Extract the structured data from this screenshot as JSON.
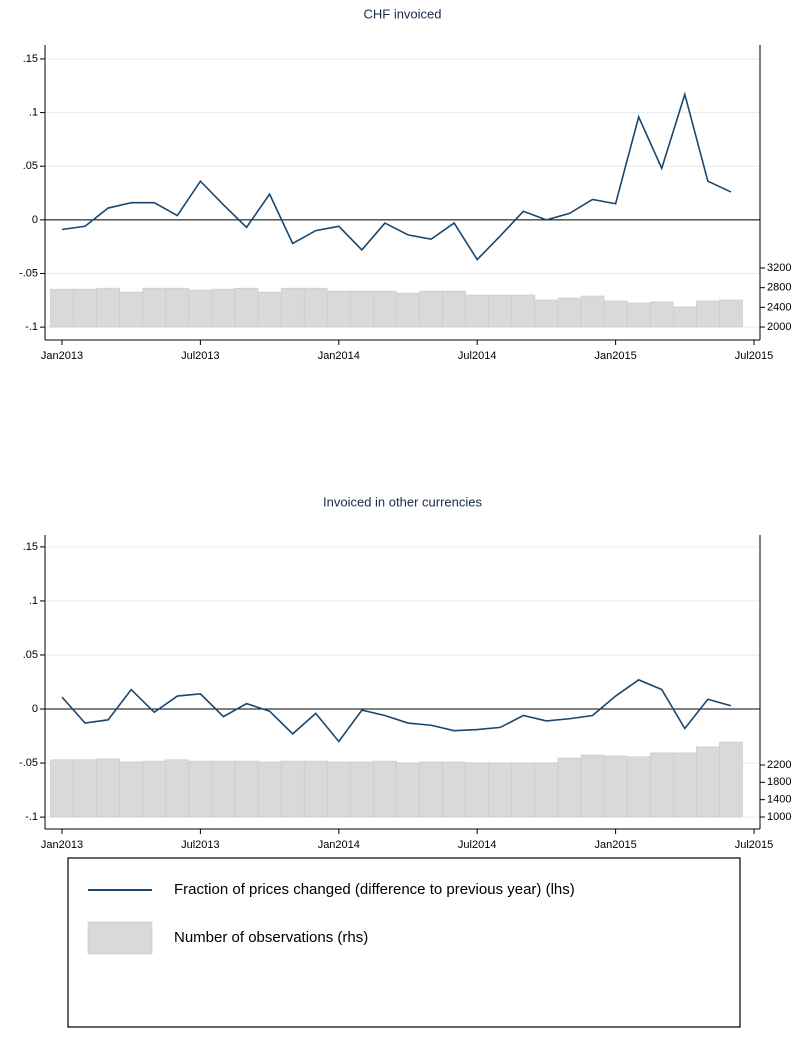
{
  "chart_data": [
    {
      "type": "line",
      "title": "CHF invoiced",
      "x": [
        "2013-01",
        "2013-02",
        "2013-03",
        "2013-04",
        "2013-05",
        "2013-06",
        "2013-07",
        "2013-08",
        "2013-09",
        "2013-10",
        "2013-11",
        "2013-12",
        "2014-01",
        "2014-02",
        "2014-03",
        "2014-04",
        "2014-05",
        "2014-06",
        "2014-07",
        "2014-08",
        "2014-09",
        "2014-10",
        "2014-11",
        "2014-12",
        "2015-01",
        "2015-02",
        "2015-03",
        "2015-04",
        "2015-05",
        "2015-06"
      ],
      "series": [
        {
          "name": "Fraction of prices changed (difference to previous year) (lhs)",
          "type": "line",
          "color": "#1a476f",
          "values": [
            -0.009,
            -0.006,
            0.011,
            0.016,
            0.016,
            0.004,
            0.036,
            0.014,
            -0.007,
            0.024,
            -0.022,
            -0.01,
            -0.006,
            -0.028,
            -0.003,
            -0.014,
            -0.018,
            -0.003,
            -0.037,
            -0.015,
            0.008,
            0.0,
            0.006,
            0.019,
            0.015,
            0.096,
            0.048,
            0.117,
            0.036,
            0.026
          ]
        },
        {
          "name": "Number of observations (rhs)",
          "type": "bar",
          "axis": "y2",
          "color": "#d9d9d9",
          "values": [
            2770,
            2770,
            2790,
            2710,
            2790,
            2790,
            2750,
            2770,
            2790,
            2710,
            2790,
            2790,
            2730,
            2730,
            2730,
            2690,
            2730,
            2730,
            2650,
            2650,
            2650,
            2550,
            2590,
            2630,
            2530,
            2490,
            2510,
            2410,
            2530,
            2550
          ]
        }
      ],
      "xlim": [
        "2013-01",
        "2015-07"
      ],
      "xticks": [
        {
          "value": "2013-01",
          "label": "Jan2013"
        },
        {
          "value": "2013-07",
          "label": "Jul2013"
        },
        {
          "value": "2014-01",
          "label": "Jan2014"
        },
        {
          "value": "2014-07",
          "label": "Jul2014"
        },
        {
          "value": "2015-01",
          "label": "Jan2015"
        },
        {
          "value": "2015-07",
          "label": "Jul2015"
        }
      ],
      "ylim": [
        -0.112,
        0.163
      ],
      "yticks": [
        {
          "value": -0.1,
          "label": "-.1"
        },
        {
          "value": -0.05,
          "label": "-.05"
        },
        0,
        {
          "value": 0.05,
          "label": ".05"
        },
        {
          "value": 0.1,
          "label": ".1"
        },
        {
          "value": 0.15,
          "label": ".15"
        }
      ],
      "y2lim": [
        1736,
        7735
      ],
      "y2ticks": [
        2000,
        2400,
        2800,
        3200
      ],
      "refline": 0,
      "grid": true
    },
    {
      "type": "line",
      "title": "Invoiced in other currencies",
      "x": [
        "2013-01",
        "2013-02",
        "2013-03",
        "2013-04",
        "2013-05",
        "2013-06",
        "2013-07",
        "2013-08",
        "2013-09",
        "2013-10",
        "2013-11",
        "2013-12",
        "2014-01",
        "2014-02",
        "2014-03",
        "2014-04",
        "2014-05",
        "2014-06",
        "2014-07",
        "2014-08",
        "2014-09",
        "2014-10",
        "2014-11",
        "2014-12",
        "2015-01",
        "2015-02",
        "2015-03",
        "2015-04",
        "2015-05",
        "2015-06"
      ],
      "series": [
        {
          "type": "line",
          "color": "#1a476f",
          "values": [
            0.011,
            -0.013,
            -0.01,
            0.018,
            -0.003,
            0.012,
            0.014,
            -0.007,
            0.005,
            -0.002,
            -0.023,
            -0.004,
            -0.03,
            -0.001,
            -0.006,
            -0.013,
            -0.015,
            -0.02,
            -0.019,
            -0.017,
            -0.006,
            -0.011,
            -0.009,
            -0.006,
            0.012,
            0.027,
            0.018,
            -0.018,
            0.009,
            0.003
          ]
        },
        {
          "type": "bar",
          "axis": "y2",
          "color": "#d9d9d9",
          "values": [
            2320,
            2320,
            2340,
            2270,
            2290,
            2320,
            2290,
            2290,
            2290,
            2270,
            2290,
            2290,
            2270,
            2270,
            2290,
            2250,
            2270,
            2270,
            2250,
            2250,
            2250,
            2250,
            2360,
            2430,
            2410,
            2390,
            2480,
            2480,
            2620,
            2730
          ]
        }
      ],
      "xlim": [
        "2013-01",
        "2015-07"
      ],
      "xticks": [
        {
          "value": "2013-01",
          "label": "Jan2013"
        },
        {
          "value": "2013-07",
          "label": "Jul2013"
        },
        {
          "value": "2014-01",
          "label": "Jan2014"
        },
        {
          "value": "2014-07",
          "label": "Jul2014"
        },
        {
          "value": "2015-01",
          "label": "Jan2015"
        },
        {
          "value": "2015-07",
          "label": "Jul2015"
        }
      ],
      "ylim": [
        -0.111,
        0.161
      ],
      "yticks": [
        {
          "value": -0.1,
          "label": "-.1"
        },
        {
          "value": -0.05,
          "label": "-.05"
        },
        0,
        {
          "value": 0.05,
          "label": ".05"
        },
        {
          "value": 0.1,
          "label": ".1"
        },
        {
          "value": 0.15,
          "label": ".15"
        }
      ],
      "y2lim": [
        723,
        7508
      ],
      "y2ticks": [
        1000,
        1400,
        1800,
        2200
      ],
      "refline": 0,
      "grid": true
    }
  ]
}
